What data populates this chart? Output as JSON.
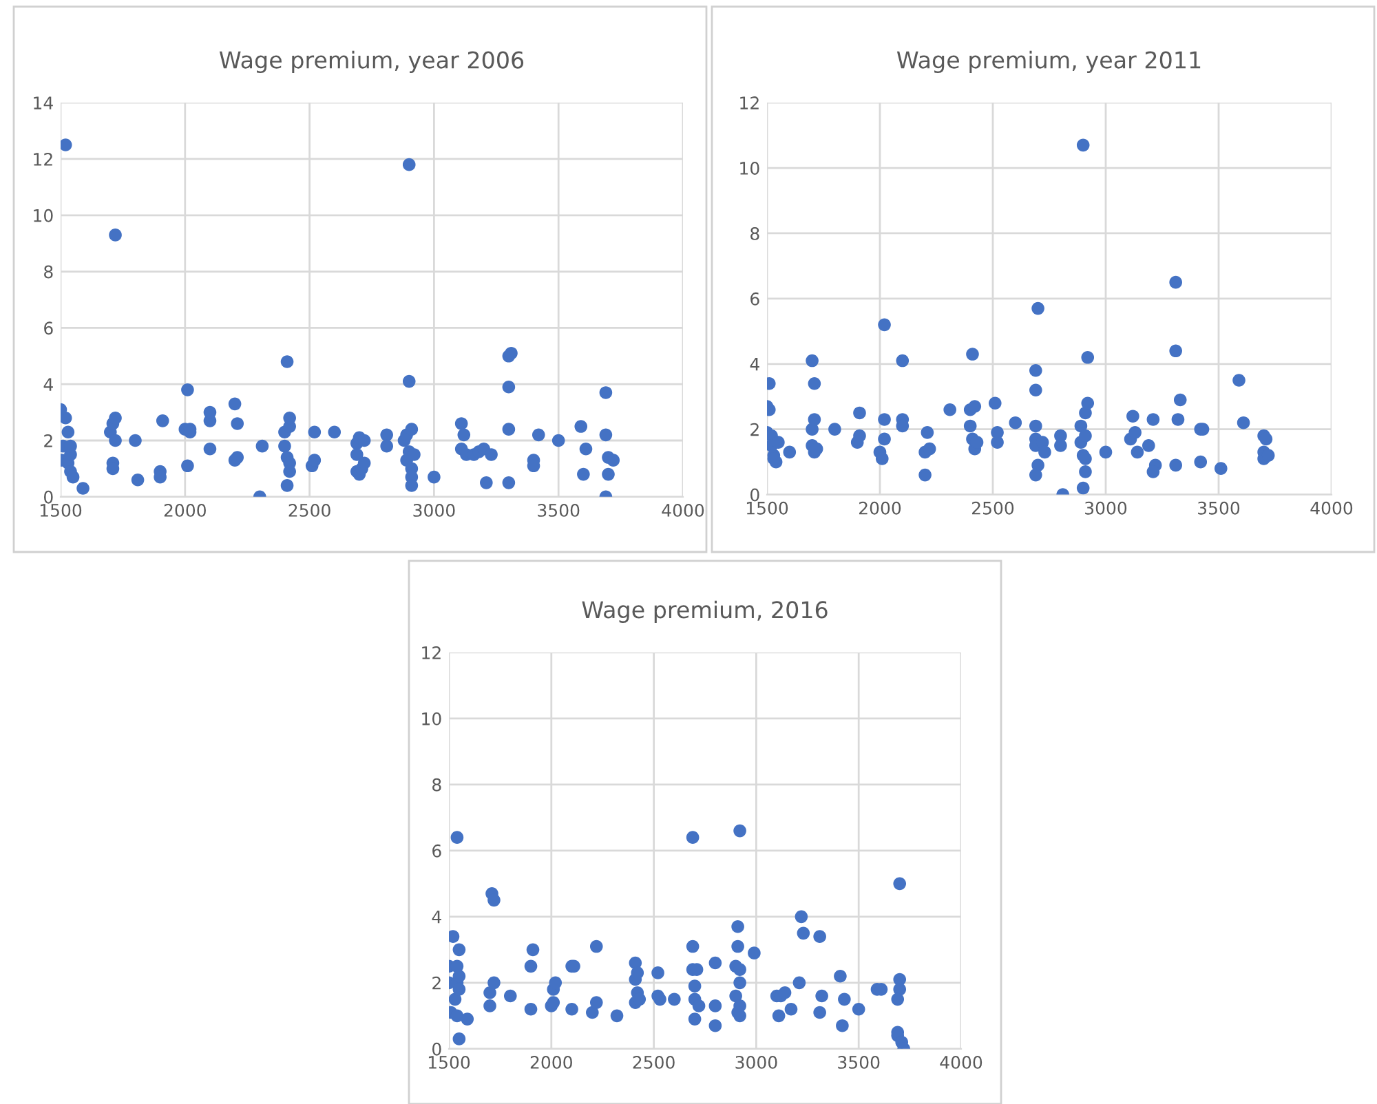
{
  "chart_data": [
    {
      "type": "scatter",
      "title": "Wage premium, year 2006",
      "xlim": [
        1500,
        4000
      ],
      "xticks": [
        1500,
        2000,
        2500,
        3000,
        3500,
        4000
      ],
      "ylim": [
        0,
        14
      ],
      "yticks": [
        0,
        2,
        4,
        6,
        8,
        10,
        12,
        14
      ],
      "grid": true,
      "marker": "circle",
      "series": [
        {
          "color": "#4472c4",
          "x": [
            1500,
            1510,
            1505,
            1520,
            1520,
            1530,
            1530,
            1540,
            1540,
            1550,
            1540,
            1590,
            1700,
            1710,
            1720,
            1720,
            1720,
            1710,
            1710,
            1800,
            1810,
            1900,
            1900,
            1910,
            2000,
            2010,
            2020,
            2020,
            2010,
            2100,
            2100,
            2100,
            2200,
            2210,
            2200,
            2210,
            2300,
            2310,
            2410,
            2400,
            2420,
            2420,
            2400,
            2410,
            2420,
            2420,
            2410,
            2510,
            2520,
            2520,
            2600,
            2690,
            2700,
            2690,
            2690,
            2700,
            2710,
            2720,
            2720,
            2810,
            2810,
            2880,
            2890,
            2900,
            2900,
            2910,
            2900,
            2890,
            2910,
            2910,
            2910,
            2920,
            3000,
            3110,
            3120,
            3110,
            3130,
            3160,
            3180,
            3200,
            3210,
            3230,
            3300,
            3310,
            3300,
            3300,
            3300,
            3420,
            3400,
            3400,
            3500,
            3590,
            3610,
            3600,
            3690,
            3690,
            3700,
            3700,
            3690,
            3720
          ],
          "values": [
            3.1,
            1.8,
            1.3,
            12.5,
            2.8,
            2.3,
            1.2,
            1.5,
            0.9,
            0.7,
            1.8,
            0.3,
            2.3,
            2.6,
            2.8,
            9.3,
            2.0,
            1.2,
            1.0,
            2.0,
            0.6,
            0.9,
            0.7,
            2.7,
            2.4,
            3.8,
            2.4,
            2.3,
            1.1,
            2.7,
            3.0,
            1.7,
            3.3,
            2.6,
            1.3,
            1.4,
            0.0,
            1.8,
            4.8,
            2.3,
            2.5,
            2.8,
            1.8,
            1.4,
            1.2,
            0.9,
            0.4,
            1.1,
            1.3,
            2.3,
            2.3,
            1.9,
            2.1,
            1.5,
            0.9,
            0.8,
            1.0,
            1.2,
            2.0,
            2.2,
            1.8,
            2.0,
            2.2,
            11.8,
            4.1,
            2.4,
            1.6,
            1.3,
            1.0,
            0.7,
            0.4,
            1.5,
            0.7,
            2.6,
            2.2,
            1.7,
            1.5,
            1.5,
            1.6,
            1.7,
            0.5,
            1.5,
            5.0,
            5.1,
            3.9,
            2.4,
            0.5,
            2.2,
            1.3,
            1.1,
            2.0,
            2.5,
            1.7,
            0.8,
            3.7,
            2.2,
            1.4,
            0.8,
            0.0,
            1.3
          ]
        }
      ]
    },
    {
      "type": "scatter",
      "title": "Wage premium, year 2011",
      "xlim": [
        1500,
        4000
      ],
      "xticks": [
        1500,
        2000,
        2500,
        3000,
        3500,
        4000
      ],
      "ylim": [
        0,
        12
      ],
      "yticks": [
        0,
        2,
        4,
        6,
        8,
        10,
        12
      ],
      "grid": true,
      "marker": "circle",
      "series": [
        {
          "color": "#4472c4",
          "x": [
            1510,
            1500,
            1510,
            1500,
            1520,
            1520,
            1530,
            1540,
            1550,
            1530,
            1600,
            1700,
            1710,
            1710,
            1700,
            1700,
            1710,
            1720,
            1800,
            1910,
            1910,
            1900,
            2000,
            2020,
            2020,
            2020,
            2010,
            2100,
            2100,
            2100,
            2210,
            2200,
            2200,
            2220,
            2310,
            2410,
            2400,
            2420,
            2400,
            2410,
            2420,
            2430,
            2510,
            2520,
            2520,
            2600,
            2690,
            2690,
            2700,
            2690,
            2690,
            2690,
            2700,
            2690,
            2720,
            2730,
            2800,
            2800,
            2810,
            2890,
            2900,
            2890,
            2900,
            2910,
            2910,
            2920,
            2920,
            2910,
            2900,
            2910,
            3000,
            3110,
            3120,
            3130,
            3140,
            3190,
            3210,
            3220,
            3210,
            3310,
            3310,
            3330,
            3320,
            3310,
            3420,
            3430,
            3420,
            3510,
            3590,
            3610,
            3700,
            3710,
            3700,
            3700,
            3720
          ],
          "values": [
            3.4,
            2.7,
            2.6,
            1.9,
            1.8,
            1.5,
            1.2,
            1.0,
            1.6,
            1.1,
            1.3,
            4.1,
            3.4,
            2.3,
            2.0,
            1.5,
            1.3,
            1.4,
            2.0,
            2.5,
            1.8,
            1.6,
            1.3,
            5.2,
            2.3,
            1.7,
            1.1,
            4.1,
            2.3,
            2.1,
            1.9,
            1.3,
            0.6,
            1.4,
            2.6,
            4.3,
            2.6,
            2.7,
            2.1,
            1.7,
            1.4,
            1.6,
            2.8,
            1.9,
            1.6,
            2.2,
            3.8,
            3.2,
            5.7,
            2.1,
            1.7,
            1.5,
            0.9,
            0.6,
            1.6,
            1.3,
            1.8,
            1.5,
            0.0,
            2.1,
            10.7,
            1.6,
            1.2,
            1.8,
            2.5,
            2.8,
            4.2,
            0.7,
            0.2,
            1.1,
            1.3,
            1.7,
            2.4,
            1.9,
            1.3,
            1.5,
            2.3,
            0.9,
            0.7,
            6.5,
            4.4,
            2.9,
            2.3,
            0.9,
            2.0,
            2.0,
            1.0,
            0.8,
            3.5,
            2.2,
            1.8,
            1.7,
            1.3,
            1.1,
            1.2
          ]
        }
      ]
    },
    {
      "type": "scatter",
      "title": "Wage premium, 2016",
      "xlim": [
        1500,
        4000
      ],
      "xticks": [
        1500,
        2000,
        2500,
        3000,
        3500,
        4000
      ],
      "ylim": [
        0,
        12
      ],
      "yticks": [
        0,
        2,
        4,
        6,
        8,
        10,
        12
      ],
      "grid": true,
      "marker": "circle",
      "series": [
        {
          "color": "#4472c4",
          "x": [
            1500,
            1500,
            1510,
            1520,
            1530,
            1540,
            1540,
            1540,
            1550,
            1550,
            1550,
            1540,
            1550,
            1590,
            1700,
            1700,
            1710,
            1720,
            1720,
            1800,
            1900,
            1910,
            1900,
            2000,
            2010,
            2020,
            2010,
            2100,
            2110,
            2100,
            2200,
            2220,
            2220,
            2320,
            2410,
            2410,
            2420,
            2420,
            2410,
            2430,
            2520,
            2520,
            2530,
            2600,
            2690,
            2690,
            2690,
            2710,
            2700,
            2700,
            2720,
            2700,
            2800,
            2800,
            2800,
            2900,
            2900,
            2910,
            2910,
            2920,
            2920,
            2920,
            2920,
            2920,
            2910,
            2990,
            3100,
            3110,
            3120,
            3140,
            3170,
            3210,
            3220,
            3230,
            3310,
            3320,
            3310,
            3410,
            3420,
            3430,
            3500,
            3590,
            3610,
            3700,
            3700,
            3690,
            3700,
            3690,
            3690,
            3710,
            3720
          ],
          "values": [
            2.5,
            2.0,
            1.1,
            3.4,
            1.5,
            6.4,
            2.5,
            2.0,
            3.0,
            2.2,
            1.8,
            1.0,
            0.3,
            0.9,
            1.7,
            1.3,
            4.7,
            4.5,
            2.0,
            1.6,
            2.5,
            3.0,
            1.2,
            1.3,
            1.8,
            2.0,
            1.4,
            2.5,
            2.5,
            1.2,
            1.1,
            1.4,
            3.1,
            1.0,
            2.6,
            2.1,
            2.3,
            1.7,
            1.4,
            1.5,
            2.3,
            1.6,
            1.5,
            1.5,
            6.4,
            3.1,
            2.4,
            2.4,
            1.9,
            1.5,
            1.3,
            0.9,
            2.6,
            1.3,
            0.7,
            1.6,
            2.5,
            3.1,
            3.7,
            6.6,
            2.4,
            2.0,
            1.3,
            1.0,
            1.1,
            2.9,
            1.6,
            1.0,
            1.6,
            1.7,
            1.2,
            2.0,
            4.0,
            3.5,
            3.4,
            1.6,
            1.1,
            2.2,
            0.7,
            1.5,
            1.2,
            1.8,
            1.8,
            2.1,
            1.8,
            1.5,
            5.0,
            0.5,
            0.4,
            0.2,
            0.0
          ]
        }
      ]
    }
  ]
}
